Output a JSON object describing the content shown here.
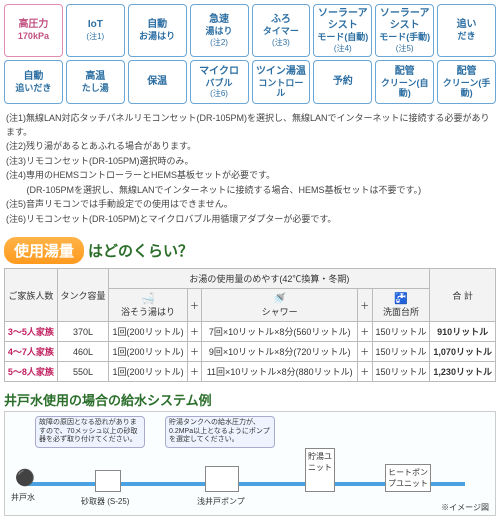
{
  "featureColors": {
    "pink": {
      "border": "#e28bb0",
      "text": "#c05080"
    },
    "blue": {
      "border": "#6aa7d6",
      "text": "#2d6fa3"
    }
  },
  "features": [
    {
      "main": "高圧力",
      "sub": "170kPa",
      "note": "",
      "color": "pink"
    },
    {
      "main": "IoT",
      "sub": "",
      "note": "(注1)",
      "color": "blue"
    },
    {
      "main": "自動",
      "sub": "お湯はり",
      "note": "",
      "color": "blue"
    },
    {
      "main": "急速",
      "sub": "湯はり",
      "note": "(注2)",
      "color": "blue"
    },
    {
      "main": "ふろ",
      "sub": "タイマー",
      "note": "(注3)",
      "color": "blue"
    },
    {
      "main": "ソーラーアシスト",
      "sub": "モード(自動)",
      "note": "(注4)",
      "color": "blue"
    },
    {
      "main": "ソーラーアシスト",
      "sub": "モード(手動)",
      "note": "(注5)",
      "color": "blue"
    },
    {
      "main": "追い",
      "sub": "だき",
      "note": "",
      "color": "blue"
    },
    {
      "main": "自動",
      "sub": "追いだき",
      "note": "",
      "color": "blue"
    },
    {
      "main": "高温",
      "sub": "たし湯",
      "note": "",
      "color": "blue"
    },
    {
      "main": "保温",
      "sub": "",
      "note": "",
      "color": "blue"
    },
    {
      "main": "マイクロ",
      "sub": "バブル",
      "note": "(注6)",
      "color": "blue"
    },
    {
      "main": "ツイン湯温",
      "sub": "コントロール",
      "note": "",
      "color": "blue"
    },
    {
      "main": "予約",
      "sub": "",
      "note": "",
      "color": "blue"
    },
    {
      "main": "配管",
      "sub": "クリーン(自動)",
      "note": "",
      "color": "blue"
    },
    {
      "main": "配管",
      "sub": "クリーン(手動)",
      "note": "",
      "color": "blue"
    }
  ],
  "notes": [
    "(注1)無線LAN対応タッチパネルリモコンセット(DR-105PM)を選択し、無線LANでインターネットに接続する必要があります。",
    "(注2)残り湯があるとあふれる場合があります。",
    "(注3)リモコンセット(DR-105PM)選択時のみ。",
    "(注4)専用のHEMSコントローラーとHEMS基板セットが必要です。",
    "　　 (DR-105PMを選択し、無線LANでインターネットに接続する場合、HEMS基板セットは不要です。)",
    "(注5)音声リモコンでは手動設定での使用はできません。",
    "(注6)リモコンセット(DR-105PM)とマイクロバブル用循環アダプターが必要です。"
  ],
  "question": {
    "badge": "使用湯量",
    "rest": "はどのくらい？"
  },
  "usage": {
    "colHeaders": {
      "family": "ご家族人数",
      "tank": "タンク容量",
      "guide": "お湯の使用量のめやす(42℃換算・冬期)",
      "total": "合 計"
    },
    "subHeaders": {
      "bath": "浴そう湯はり",
      "shower": "シャワー",
      "basin": "洗面台所"
    },
    "rows": [
      {
        "family": "3～5人家族",
        "tank": "370L",
        "bath": "1回(200リットル)",
        "shower": "7回×10リットル×8分(560リットル)",
        "basin": "150リットル",
        "total": "910リットル"
      },
      {
        "family": "4～7人家族",
        "tank": "460L",
        "bath": "1回(200リットル)",
        "shower": "9回×10リットル×8分(720リットル)",
        "basin": "150リットル",
        "total": "1,070リットル"
      },
      {
        "family": "5～8人家族",
        "tank": "550L",
        "bath": "1回(200リットル)",
        "shower": "11回×10リットル×8分(880リットル)",
        "basin": "150リットル",
        "total": "1,230リットル"
      }
    ]
  },
  "system": {
    "title": "井戸水使用の場合の給水システム例",
    "labels": {
      "well": "井戸水",
      "filter": "砂取器 (S-25)",
      "pump": "浅井戸ポンプ",
      "tank": "貯湯ユニット",
      "hp": "ヒートポンプユニット",
      "img": "※イメージ図",
      "note1": "故障の原因となる恐れがありますので、70メッシュ以上の砂取器を必ず取り付けてください。",
      "note2": "貯湯タンクへの給水圧力が、0.2MPa以上となるようにポンプを選定してください。"
    }
  }
}
